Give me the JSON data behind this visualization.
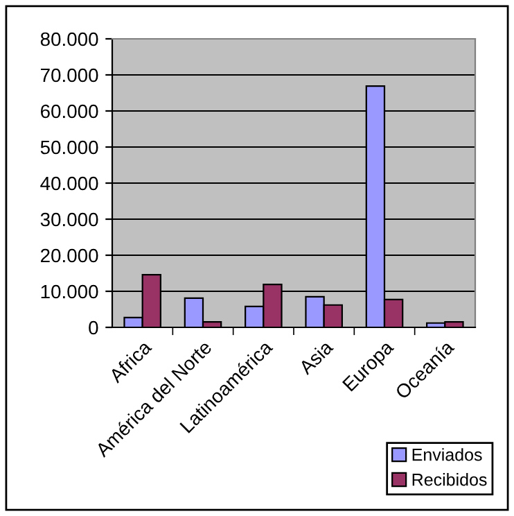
{
  "chart_data": {
    "type": "bar",
    "categories": [
      "Africa",
      "América del Norte",
      "Latinoamérica",
      "Asia",
      "Europa",
      "Oceanía"
    ],
    "series": [
      {
        "name": "Enviados",
        "color": "#9999ff",
        "values": [
          2700,
          8100,
          5800,
          8500,
          66900,
          1200
        ]
      },
      {
        "name": "Recibidos",
        "color": "#993366",
        "values": [
          14600,
          1500,
          11900,
          6200,
          7700,
          1500
        ]
      }
    ],
    "ylim": [
      0,
      80000
    ],
    "yticks": [
      0,
      {
        "value": 10000,
        "label": "10.000"
      },
      {
        "value": 20000,
        "label": "20.000"
      },
      {
        "value": 30000,
        "label": "30.000"
      },
      {
        "value": 40000,
        "label": "40.000"
      },
      {
        "value": 50000,
        "label": "50.000"
      },
      {
        "value": 60000,
        "label": "60.000"
      },
      {
        "value": 70000,
        "label": "70.000"
      },
      {
        "value": 80000,
        "label": "80.000"
      }
    ],
    "grid": "y",
    "legend": "bottom right"
  }
}
